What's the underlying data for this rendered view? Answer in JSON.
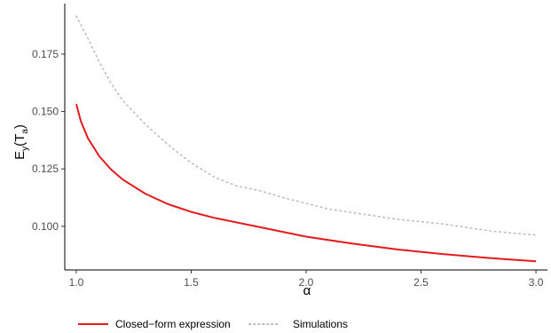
{
  "chart_data": {
    "type": "line",
    "title": "",
    "xlabel": "α",
    "ylabel": {
      "base": "E",
      "sub1": "y",
      "paren_open": "(",
      "inner": "T",
      "sub2": "a",
      "paren_close": ")"
    },
    "xlim": [
      0.95,
      3.05
    ],
    "ylim": [
      0.081,
      0.197
    ],
    "x_ticks": [
      1.0,
      1.5,
      2.0,
      2.5,
      3.0
    ],
    "x_tick_labels": [
      "1.0",
      "1.5",
      "2.0",
      "2.5",
      "3.0"
    ],
    "y_ticks": [
      0.1,
      0.125,
      0.15,
      0.175
    ],
    "y_tick_labels": [
      "0.100",
      "0.125",
      "0.150",
      "0.175"
    ],
    "grid": false,
    "legend_position": "bottom",
    "series": [
      {
        "name": "Closed−form expression",
        "style": "solid",
        "color": "#e41a1c",
        "x": [
          1.0,
          1.02,
          1.05,
          1.1,
          1.15,
          1.2,
          1.3,
          1.4,
          1.5,
          1.6,
          1.8,
          2.0,
          2.2,
          2.4,
          2.6,
          2.8,
          3.0
        ],
        "y": [
          0.1532,
          0.1458,
          0.1385,
          0.1305,
          0.1249,
          0.1205,
          0.1142,
          0.1096,
          0.1063,
          0.1037,
          0.0996,
          0.0955,
          0.0925,
          0.0899,
          0.0879,
          0.0862,
          0.0848
        ]
      },
      {
        "name": "Simulations",
        "style": "dotted",
        "color": "#bdbdbd",
        "x": [
          1.0,
          1.05,
          1.1,
          1.15,
          1.2,
          1.3,
          1.4,
          1.5,
          1.6,
          1.7,
          1.8,
          1.9,
          2.0,
          2.1,
          2.2,
          2.3,
          2.4,
          2.5,
          2.6,
          2.7,
          2.8,
          2.9,
          3.0
        ],
        "y": [
          0.1915,
          0.182,
          0.1715,
          0.1625,
          0.155,
          0.1445,
          0.1355,
          0.1275,
          0.1215,
          0.1175,
          0.1155,
          0.1125,
          0.11,
          0.1075,
          0.106,
          0.1045,
          0.103,
          0.102,
          0.101,
          0.0995,
          0.098,
          0.097,
          0.0962
        ]
      }
    ]
  }
}
